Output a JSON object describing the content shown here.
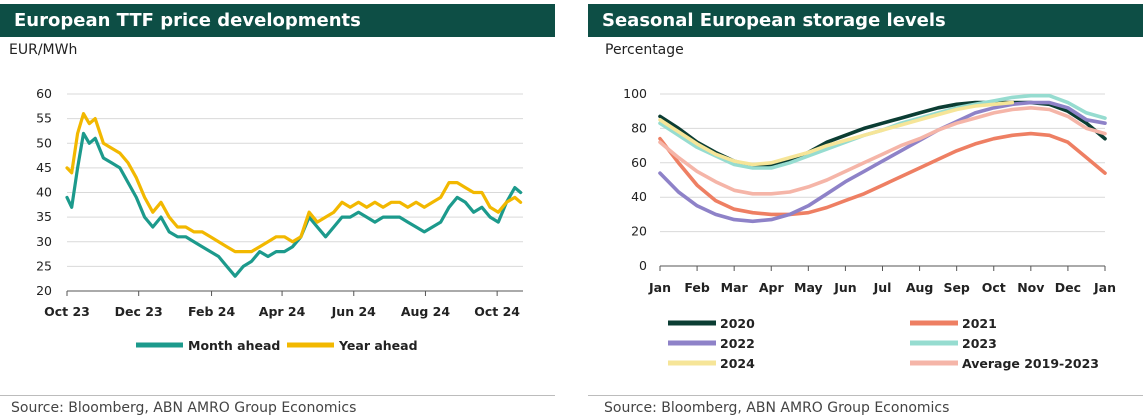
{
  "left": {
    "title": "European TTF price developments",
    "unit": "EUR/MWh",
    "source": "Source: Bloomberg, ABN AMRO Group Economics"
  },
  "right": {
    "title": "Seasonal European storage levels",
    "unit": "Percentage",
    "source": "Source: Bloomberg, ABN AMRO Group Economics"
  },
  "chart_data": [
    {
      "type": "line",
      "title": "European TTF price developments",
      "ylabel": "EUR/MWh",
      "ylim": [
        20,
        60
      ],
      "yticks": [
        "20",
        "25",
        "30",
        "35",
        "40",
        "45",
        "50",
        "55",
        "60"
      ],
      "xticks": [
        "Oct 23",
        "Dec 23",
        "Feb 24",
        "Apr 24",
        "Jun 24",
        "Aug 24",
        "Oct 24"
      ],
      "grid": "horizontal",
      "legend": "bottom",
      "series": [
        {
          "name": "Month ahead",
          "color": "#1c9a8c",
          "x": [
            "2023-10-01",
            "2023-10-05",
            "2023-10-10",
            "2023-10-15",
            "2023-10-20",
            "2023-10-25",
            "2023-11-01",
            "2023-11-08",
            "2023-11-15",
            "2023-11-22",
            "2023-11-29",
            "2023-12-06",
            "2023-12-13",
            "2023-12-20",
            "2023-12-27",
            "2024-01-03",
            "2024-01-10",
            "2024-01-17",
            "2024-01-24",
            "2024-01-31",
            "2024-02-07",
            "2024-02-14",
            "2024-02-21",
            "2024-02-28",
            "2024-03-06",
            "2024-03-13",
            "2024-03-20",
            "2024-03-27",
            "2024-04-03",
            "2024-04-10",
            "2024-04-17",
            "2024-04-24",
            "2024-05-01",
            "2024-05-08",
            "2024-05-15",
            "2024-05-22",
            "2024-05-29",
            "2024-06-05",
            "2024-06-12",
            "2024-06-19",
            "2024-06-26",
            "2024-07-03",
            "2024-07-10",
            "2024-07-17",
            "2024-07-24",
            "2024-07-31",
            "2024-08-07",
            "2024-08-14",
            "2024-08-21",
            "2024-08-28",
            "2024-09-04",
            "2024-09-11",
            "2024-09-18",
            "2024-09-25",
            "2024-10-02",
            "2024-10-09",
            "2024-10-16",
            "2024-10-21"
          ],
          "values": [
            39,
            37,
            45,
            52,
            50,
            51,
            47,
            46,
            45,
            42,
            39,
            35,
            33,
            35,
            32,
            31,
            31,
            30,
            29,
            28,
            27,
            25,
            23,
            25,
            26,
            28,
            27,
            28,
            28,
            29,
            31,
            35,
            33,
            31,
            33,
            35,
            35,
            36,
            35,
            34,
            35,
            35,
            35,
            34,
            33,
            32,
            33,
            34,
            37,
            39,
            38,
            36,
            37,
            35,
            34,
            38,
            41,
            40
          ]
        },
        {
          "name": "Year ahead",
          "color": "#f2b800",
          "x": [
            "2023-10-01",
            "2023-10-05",
            "2023-10-10",
            "2023-10-15",
            "2023-10-20",
            "2023-10-25",
            "2023-11-01",
            "2023-11-08",
            "2023-11-15",
            "2023-11-22",
            "2023-11-29",
            "2023-12-06",
            "2023-12-13",
            "2023-12-20",
            "2023-12-27",
            "2024-01-03",
            "2024-01-10",
            "2024-01-17",
            "2024-01-24",
            "2024-01-31",
            "2024-02-07",
            "2024-02-14",
            "2024-02-21",
            "2024-02-28",
            "2024-03-06",
            "2024-03-13",
            "2024-03-20",
            "2024-03-27",
            "2024-04-03",
            "2024-04-10",
            "2024-04-17",
            "2024-04-24",
            "2024-05-01",
            "2024-05-08",
            "2024-05-15",
            "2024-05-22",
            "2024-05-29",
            "2024-06-05",
            "2024-06-12",
            "2024-06-19",
            "2024-06-26",
            "2024-07-03",
            "2024-07-10",
            "2024-07-17",
            "2024-07-24",
            "2024-07-31",
            "2024-08-07",
            "2024-08-14",
            "2024-08-21",
            "2024-08-28",
            "2024-09-04",
            "2024-09-11",
            "2024-09-18",
            "2024-09-25",
            "2024-10-02",
            "2024-10-09",
            "2024-10-16",
            "2024-10-21"
          ],
          "values": [
            45,
            44,
            52,
            56,
            54,
            55,
            50,
            49,
            48,
            46,
            43,
            39,
            36,
            38,
            35,
            33,
            33,
            32,
            32,
            31,
            30,
            29,
            28,
            28,
            28,
            29,
            30,
            31,
            31,
            30,
            31,
            36,
            34,
            35,
            36,
            38,
            37,
            38,
            37,
            38,
            37,
            38,
            38,
            37,
            38,
            37,
            38,
            39,
            42,
            42,
            41,
            40,
            40,
            37,
            36,
            38,
            39,
            38
          ]
        }
      ]
    },
    {
      "type": "line",
      "title": "Seasonal European storage levels",
      "ylabel": "Percentage",
      "ylim": [
        0,
        100
      ],
      "yticks": [
        "0",
        "20",
        "40",
        "60",
        "80",
        "100"
      ],
      "xticks": [
        "Jan",
        "Feb",
        "Mar",
        "Apr",
        "May",
        "Jun",
        "Jul",
        "Aug",
        "Sep",
        "Oct",
        "Nov",
        "Dec",
        "Jan"
      ],
      "grid": "horizontal",
      "legend": "bottom",
      "series": [
        {
          "name": "2020",
          "color": "#0b3d33",
          "x": [
            0,
            0.5,
            1,
            1.5,
            2,
            2.5,
            3,
            3.5,
            4,
            4.5,
            5,
            5.5,
            6,
            6.5,
            7,
            7.5,
            8,
            8.5,
            9,
            9.5,
            10,
            10.5,
            11,
            11.5,
            12
          ],
          "values": [
            87,
            80,
            72,
            66,
            61,
            58,
            59,
            62,
            66,
            72,
            76,
            80,
            83,
            86,
            89,
            92,
            94,
            95,
            95,
            95,
            95,
            94,
            90,
            83,
            74
          ]
        },
        {
          "name": "2021",
          "color": "#ee7f63",
          "x": [
            0,
            0.5,
            1,
            1.5,
            2,
            2.5,
            3,
            3.5,
            4,
            4.5,
            5,
            5.5,
            6,
            6.5,
            7,
            7.5,
            8,
            8.5,
            9,
            9.5,
            10,
            10.5,
            11,
            11.5,
            12
          ],
          "values": [
            74,
            60,
            47,
            38,
            33,
            31,
            30,
            30,
            31,
            34,
            38,
            42,
            47,
            52,
            57,
            62,
            67,
            71,
            74,
            76,
            77,
            76,
            72,
            63,
            54
          ]
        },
        {
          "name": "2022",
          "color": "#8e82c8",
          "x": [
            0,
            0.5,
            1,
            1.5,
            2,
            2.5,
            3,
            3.5,
            4,
            4.5,
            5,
            5.5,
            6,
            6.5,
            7,
            7.5,
            8,
            8.5,
            9,
            9.5,
            10,
            10.5,
            11,
            11.5,
            12
          ],
          "values": [
            54,
            43,
            35,
            30,
            27,
            26,
            27,
            30,
            35,
            42,
            49,
            55,
            61,
            67,
            73,
            79,
            84,
            89,
            92,
            94,
            95,
            95,
            92,
            85,
            83
          ]
        },
        {
          "name": "2023",
          "color": "#96dcd0",
          "x": [
            0,
            0.5,
            1,
            1.5,
            2,
            2.5,
            3,
            3.5,
            4,
            4.5,
            5,
            5.5,
            6,
            6.5,
            7,
            7.5,
            8,
            8.5,
            9,
            9.5,
            10,
            10.5,
            11,
            11.5,
            12
          ],
          "values": [
            83,
            76,
            69,
            64,
            59,
            57,
            57,
            60,
            64,
            68,
            72,
            76,
            79,
            83,
            86,
            89,
            92,
            94,
            96,
            98,
            99,
            99,
            95,
            89,
            86
          ]
        },
        {
          "name": "2024",
          "color": "#f6e598",
          "x": [
            0,
            0.5,
            1,
            1.5,
            2,
            2.5,
            3,
            3.5,
            4,
            4.5,
            5,
            5.5,
            6,
            6.5,
            7,
            7.5,
            8,
            8.5,
            9,
            9.5
          ],
          "values": [
            85,
            78,
            71,
            65,
            61,
            59,
            60,
            63,
            66,
            70,
            73,
            76,
            79,
            82,
            85,
            88,
            91,
            93,
            94,
            95
          ]
        },
        {
          "name": "Average 2019-2023",
          "color": "#f5b5a8",
          "x": [
            0,
            0.5,
            1,
            1.5,
            2,
            2.5,
            3,
            3.5,
            4,
            4.5,
            5,
            5.5,
            6,
            6.5,
            7,
            7.5,
            8,
            8.5,
            9,
            9.5,
            10,
            10.5,
            11,
            11.5,
            12
          ],
          "values": [
            72,
            63,
            55,
            49,
            44,
            42,
            42,
            43,
            46,
            50,
            55,
            60,
            65,
            70,
            74,
            79,
            83,
            86,
            89,
            91,
            92,
            91,
            87,
            80,
            77
          ]
        }
      ]
    }
  ]
}
